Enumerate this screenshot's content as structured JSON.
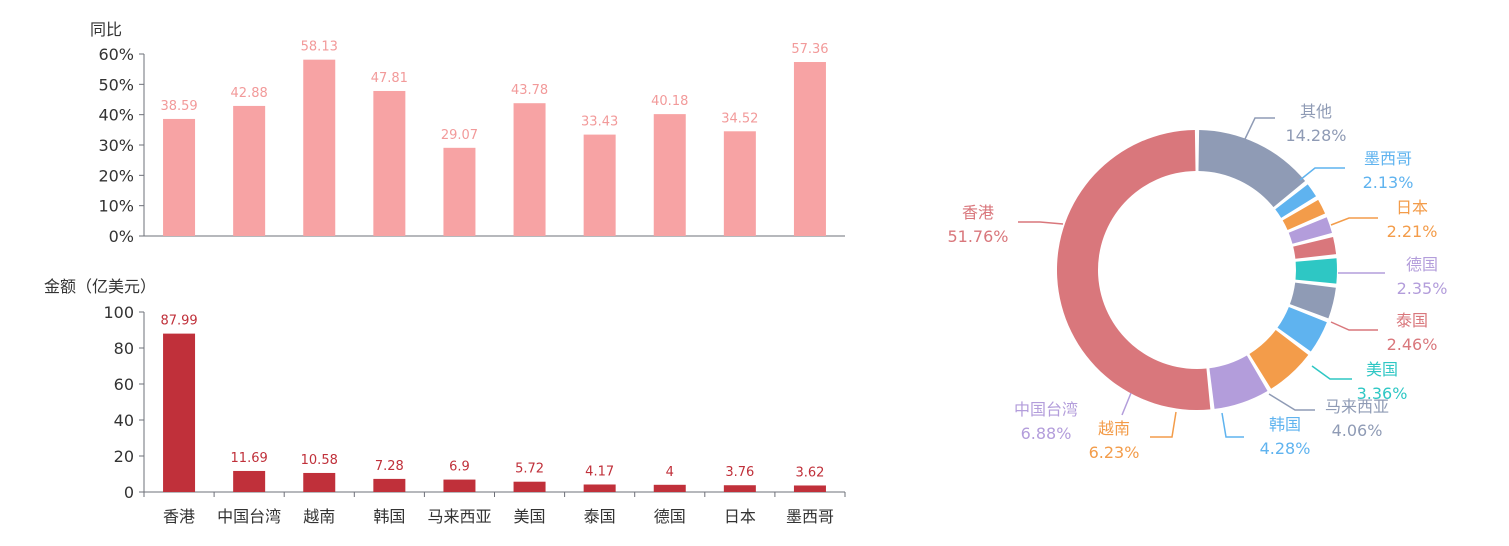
{
  "chart_data": [
    {
      "type": "bar",
      "ylabel": "同比",
      "categories": [
        "香港",
        "中国台湾",
        "越南",
        "韩国",
        "马来西亚",
        "美国",
        "泰国",
        "德国",
        "日本",
        "墨西哥"
      ],
      "values": [
        38.59,
        42.88,
        58.13,
        47.81,
        29.07,
        43.78,
        33.43,
        40.18,
        34.52,
        57.36
      ],
      "ylim": [
        0,
        60
      ],
      "yticks": [
        "0%",
        "10%",
        "20%",
        "30%",
        "40%",
        "50%",
        "60%"
      ],
      "color": "#f7a3a4"
    },
    {
      "type": "bar",
      "ylabel": "金额（亿美元）",
      "categories": [
        "香港",
        "中国台湾",
        "越南",
        "韩国",
        "马来西亚",
        "美国",
        "泰国",
        "德国",
        "日本",
        "墨西哥"
      ],
      "values": [
        87.99,
        11.69,
        10.58,
        7.28,
        6.9,
        5.72,
        4.17,
        4,
        3.76,
        3.62
      ],
      "ylim": [
        0,
        100
      ],
      "yticks": [
        "0",
        "20",
        "40",
        "60",
        "80",
        "100"
      ],
      "color": "#c0303a"
    },
    {
      "type": "pie",
      "style": "donut",
      "slices": [
        {
          "name": "香港",
          "pct": "51.76%",
          "value": 51.76,
          "color": "#d9777c"
        },
        {
          "name": "中国台湾",
          "pct": "6.88%",
          "value": 6.88,
          "color": "#b39ddb"
        },
        {
          "name": "越南",
          "pct": "6.23%",
          "value": 6.23,
          "color": "#f39c4a"
        },
        {
          "name": "韩国",
          "pct": "4.28%",
          "value": 4.28,
          "color": "#5fb3ef"
        },
        {
          "name": "马来西亚",
          "pct": "4.06%",
          "value": 4.06,
          "color": "#8f9bb5"
        },
        {
          "name": "美国",
          "pct": "3.36%",
          "value": 3.36,
          "color": "#2ec7c4"
        },
        {
          "name": "泰国",
          "pct": "2.46%",
          "value": 2.46,
          "color": "#d9777c"
        },
        {
          "name": "德国",
          "pct": "2.35%",
          "value": 2.35,
          "color": "#b39ddb"
        },
        {
          "name": "日本",
          "pct": "2.21%",
          "value": 2.21,
          "color": "#f39c4a"
        },
        {
          "name": "墨西哥",
          "pct": "2.13%",
          "value": 2.13,
          "color": "#5fb3ef"
        },
        {
          "name": "其他",
          "pct": "14.28%",
          "value": 14.28,
          "color": "#8f9bb5"
        }
      ]
    }
  ]
}
